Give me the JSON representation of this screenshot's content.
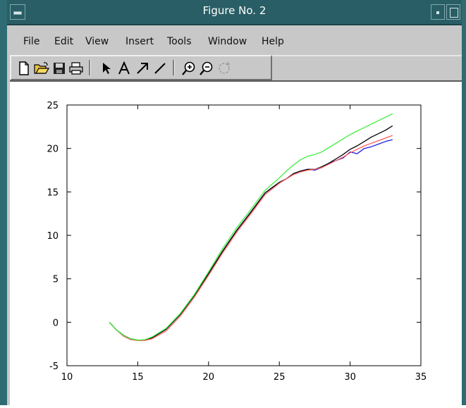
{
  "window": {
    "title": "Figure No. 2"
  },
  "menu": {
    "items": [
      "File",
      "Edit",
      "View",
      "Insert",
      "Tools",
      "Window",
      "Help"
    ]
  },
  "toolbar": {
    "tools": [
      "new-file-icon",
      "open-folder-icon",
      "save-icon",
      "print-icon",
      "arrow-pointer-icon",
      "text-tool-icon",
      "arrow-tool-icon",
      "line-tool-icon",
      "zoom-in-icon",
      "zoom-out-icon",
      "rotate-icon"
    ]
  },
  "chart_data": {
    "type": "line",
    "title": "",
    "xlabel": "",
    "ylabel": "",
    "xlim": [
      10,
      35
    ],
    "ylim": [
      -5,
      25
    ],
    "xticks": [
      10,
      15,
      20,
      25,
      30,
      35
    ],
    "yticks": [
      -5,
      0,
      5,
      10,
      15,
      20,
      25
    ],
    "grid": false,
    "series": [
      {
        "color": "#1a1ae6",
        "x": [
          13,
          13.5,
          14,
          14.5,
          15,
          15.5,
          16,
          17,
          18,
          19,
          20,
          21,
          22,
          23,
          24,
          25,
          25.5,
          26,
          26.5,
          27,
          27.5,
          28,
          28.5,
          29,
          29.5,
          30,
          30.5,
          31,
          31.5,
          32,
          32.5,
          33
        ],
        "y": [
          0,
          -0.9,
          -1.5,
          -1.9,
          -2.05,
          -2.05,
          -1.8,
          -0.8,
          0.9,
          3.1,
          5.6,
          8.2,
          10.6,
          12.7,
          14.9,
          16.1,
          16.5,
          17.1,
          17.4,
          17.6,
          17.5,
          17.8,
          18.3,
          18.6,
          18.9,
          19.6,
          19.4,
          20.0,
          20.2,
          20.5,
          20.8,
          21.0
        ]
      },
      {
        "color": "#000000",
        "x": [
          13,
          13.5,
          14,
          14.5,
          15,
          15.5,
          16,
          17,
          18,
          19,
          20,
          21,
          22,
          23,
          24,
          25,
          25.5,
          26,
          26.5,
          27,
          27.5,
          28,
          28.5,
          29,
          29.5,
          30,
          30.5,
          31,
          31.5,
          32,
          32.5,
          33
        ],
        "y": [
          0,
          -0.9,
          -1.5,
          -1.9,
          -2.05,
          -2.05,
          -1.8,
          -0.8,
          0.9,
          3.1,
          5.6,
          8.2,
          10.6,
          12.7,
          14.9,
          16.1,
          16.5,
          17.1,
          17.4,
          17.6,
          17.6,
          17.9,
          18.3,
          18.8,
          19.3,
          19.9,
          20.3,
          20.8,
          21.3,
          21.7,
          22.1,
          22.6
        ]
      },
      {
        "color": "#ff5a5a",
        "x": [
          13,
          13.5,
          14,
          14.5,
          15,
          15.5,
          16,
          17,
          18,
          19,
          20,
          21,
          22,
          23,
          24,
          25,
          25.5,
          26,
          26.5,
          27,
          27.5,
          28,
          28.5,
          29,
          29.5,
          30,
          30.5,
          31,
          31.5,
          32,
          32.5,
          33
        ],
        "y": [
          0,
          -0.9,
          -1.6,
          -2.0,
          -2.1,
          -2.1,
          -1.9,
          -1.0,
          0.7,
          2.9,
          5.4,
          8.0,
          10.4,
          12.5,
          14.7,
          16.0,
          16.5,
          17.0,
          17.3,
          17.5,
          17.6,
          17.8,
          18.2,
          18.6,
          19.0,
          19.5,
          19.9,
          20.3,
          20.6,
          20.9,
          21.2,
          21.5
        ]
      },
      {
        "color": "#3cf03c",
        "x": [
          13,
          13.5,
          14,
          14.5,
          15,
          15.5,
          16,
          17,
          18,
          19,
          20,
          21,
          22,
          23,
          24,
          25,
          25.5,
          26,
          26.5,
          27,
          27.5,
          28,
          28.5,
          29,
          29.5,
          30,
          30.5,
          31,
          31.5,
          32,
          32.5,
          33
        ],
        "y": [
          0,
          -0.9,
          -1.5,
          -1.9,
          -2.05,
          -2.0,
          -1.7,
          -0.7,
          1.0,
          3.2,
          5.8,
          8.5,
          10.9,
          13.0,
          15.2,
          16.6,
          17.4,
          18.1,
          18.7,
          19.1,
          19.3,
          19.6,
          20.1,
          20.6,
          21.1,
          21.6,
          22.0,
          22.4,
          22.8,
          23.2,
          23.6,
          24.0
        ]
      }
    ]
  }
}
